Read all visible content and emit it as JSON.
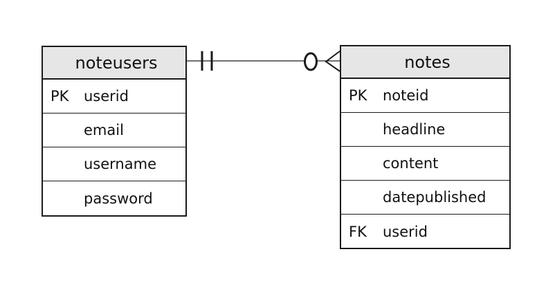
{
  "entities": {
    "noteusers": {
      "name": "noteusers",
      "rows": [
        {
          "key": "PK",
          "attr": "userid"
        },
        {
          "key": "",
          "attr": "email"
        },
        {
          "key": "",
          "attr": "username"
        },
        {
          "key": "",
          "attr": "password"
        }
      ]
    },
    "notes": {
      "name": "notes",
      "rows": [
        {
          "key": "PK",
          "attr": "noteid"
        },
        {
          "key": "",
          "attr": "headline"
        },
        {
          "key": "",
          "attr": "content"
        },
        {
          "key": "",
          "attr": "datepublished"
        },
        {
          "key": "FK",
          "attr": "userid"
        }
      ]
    }
  },
  "relationship": {
    "from": "noteusers",
    "to": "notes",
    "from_cardinality": "one-and-only-one",
    "to_cardinality": "zero-or-many"
  },
  "colors": {
    "header_fill": "#e6e6e6",
    "border": "#1a1a1a"
  }
}
